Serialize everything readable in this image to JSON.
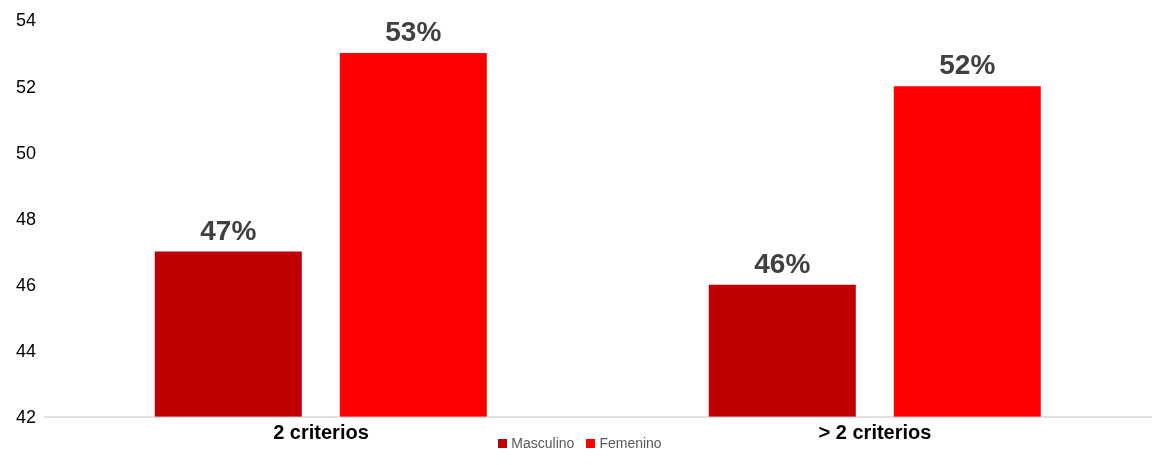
{
  "chart_data": {
    "type": "bar",
    "categories": [
      "2 criterios",
      "> 2 criterios"
    ],
    "series": [
      {
        "name": "Masculino",
        "color": "#c00000",
        "values": [
          47,
          46
        ],
        "value_labels": [
          "47%",
          "46%"
        ]
      },
      {
        "name": "Femenino",
        "color": "#ff0000",
        "values": [
          53,
          52
        ],
        "value_labels": [
          "53%",
          "52%"
        ]
      }
    ],
    "ylim": [
      42,
      54
    ],
    "yticks": [
      42,
      44,
      46,
      48,
      50,
      52,
      54
    ],
    "grid": false,
    "legend": "bottom"
  }
}
